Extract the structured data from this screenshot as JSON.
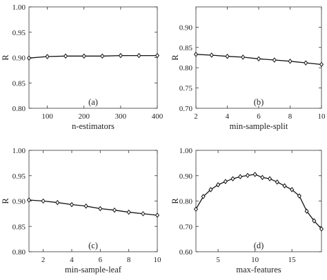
{
  "chart_data": [
    {
      "type": "line",
      "panel_tag": "(a)",
      "xlabel": "n-estimators",
      "ylabel": "R",
      "xlim": [
        50,
        400
      ],
      "ylim": [
        0.8,
        1.0
      ],
      "xticks": [
        100,
        200,
        300,
        400
      ],
      "yticks": [
        0.8,
        0.85,
        0.9,
        0.95,
        1.0
      ],
      "ytick_labels": [
        "0.80",
        "0.85",
        "0.90",
        "0.95",
        "1.00"
      ],
      "marker": "diamond",
      "series": [
        {
          "x": [
            50,
            100,
            150,
            200,
            250,
            300,
            350,
            400
          ],
          "y": [
            0.899,
            0.902,
            0.903,
            0.903,
            0.903,
            0.904,
            0.904,
            0.904
          ]
        }
      ]
    },
    {
      "type": "line",
      "panel_tag": "(b)",
      "xlabel": "min-sample-split",
      "ylabel": "R",
      "xlim": [
        2,
        10
      ],
      "ylim": [
        0.7,
        0.95
      ],
      "xticks": [
        2,
        4,
        6,
        8,
        10
      ],
      "yticks": [
        0.7,
        0.75,
        0.8,
        0.85,
        0.9
      ],
      "ytick_labels": [
        "0.70",
        "0.75",
        "0.80",
        "0.85",
        "0.90"
      ],
      "marker": "diamond",
      "series": [
        {
          "x": [
            2,
            3,
            4,
            5,
            6,
            7,
            8,
            9,
            10
          ],
          "y": [
            0.833,
            0.831,
            0.828,
            0.826,
            0.822,
            0.819,
            0.816,
            0.812,
            0.808
          ]
        }
      ]
    },
    {
      "type": "line",
      "panel_tag": "(c)",
      "xlabel": "min-sample-leaf",
      "ylabel": "R",
      "xlim": [
        1,
        10
      ],
      "ylim": [
        0.8,
        1.0
      ],
      "xticks": [
        2,
        4,
        6,
        8,
        10
      ],
      "yticks": [
        0.8,
        0.85,
        0.9,
        0.95,
        1.0
      ],
      "ytick_labels": [
        "0.80",
        "0.85",
        "0.90",
        "0.95",
        "1.00"
      ],
      "marker": "diamond",
      "series": [
        {
          "x": [
            1,
            2,
            3,
            4,
            5,
            6,
            7,
            8,
            9,
            10
          ],
          "y": [
            0.902,
            0.9,
            0.897,
            0.893,
            0.89,
            0.885,
            0.882,
            0.878,
            0.875,
            0.872
          ]
        }
      ]
    },
    {
      "type": "line",
      "panel_tag": "(d)",
      "xlabel": "max-features",
      "ylabel": "R",
      "xlim": [
        2,
        19
      ],
      "ylim": [
        0.6,
        1.0
      ],
      "xticks": [
        5,
        10,
        15
      ],
      "yticks": [
        0.6,
        0.7,
        0.8,
        0.9,
        1.0
      ],
      "ytick_labels": [
        "0.60",
        "0.70",
        "0.80",
        "0.90",
        "1.00"
      ],
      "marker": "diamond",
      "series": [
        {
          "x": [
            2,
            3,
            4,
            5,
            6,
            7,
            8,
            9,
            10,
            11,
            12,
            13,
            14,
            15,
            16,
            17,
            18,
            19
          ],
          "y": [
            0.768,
            0.818,
            0.845,
            0.864,
            0.877,
            0.888,
            0.896,
            0.901,
            0.905,
            0.893,
            0.888,
            0.875,
            0.86,
            0.845,
            0.82,
            0.76,
            0.722,
            0.69
          ]
        }
      ]
    }
  ]
}
